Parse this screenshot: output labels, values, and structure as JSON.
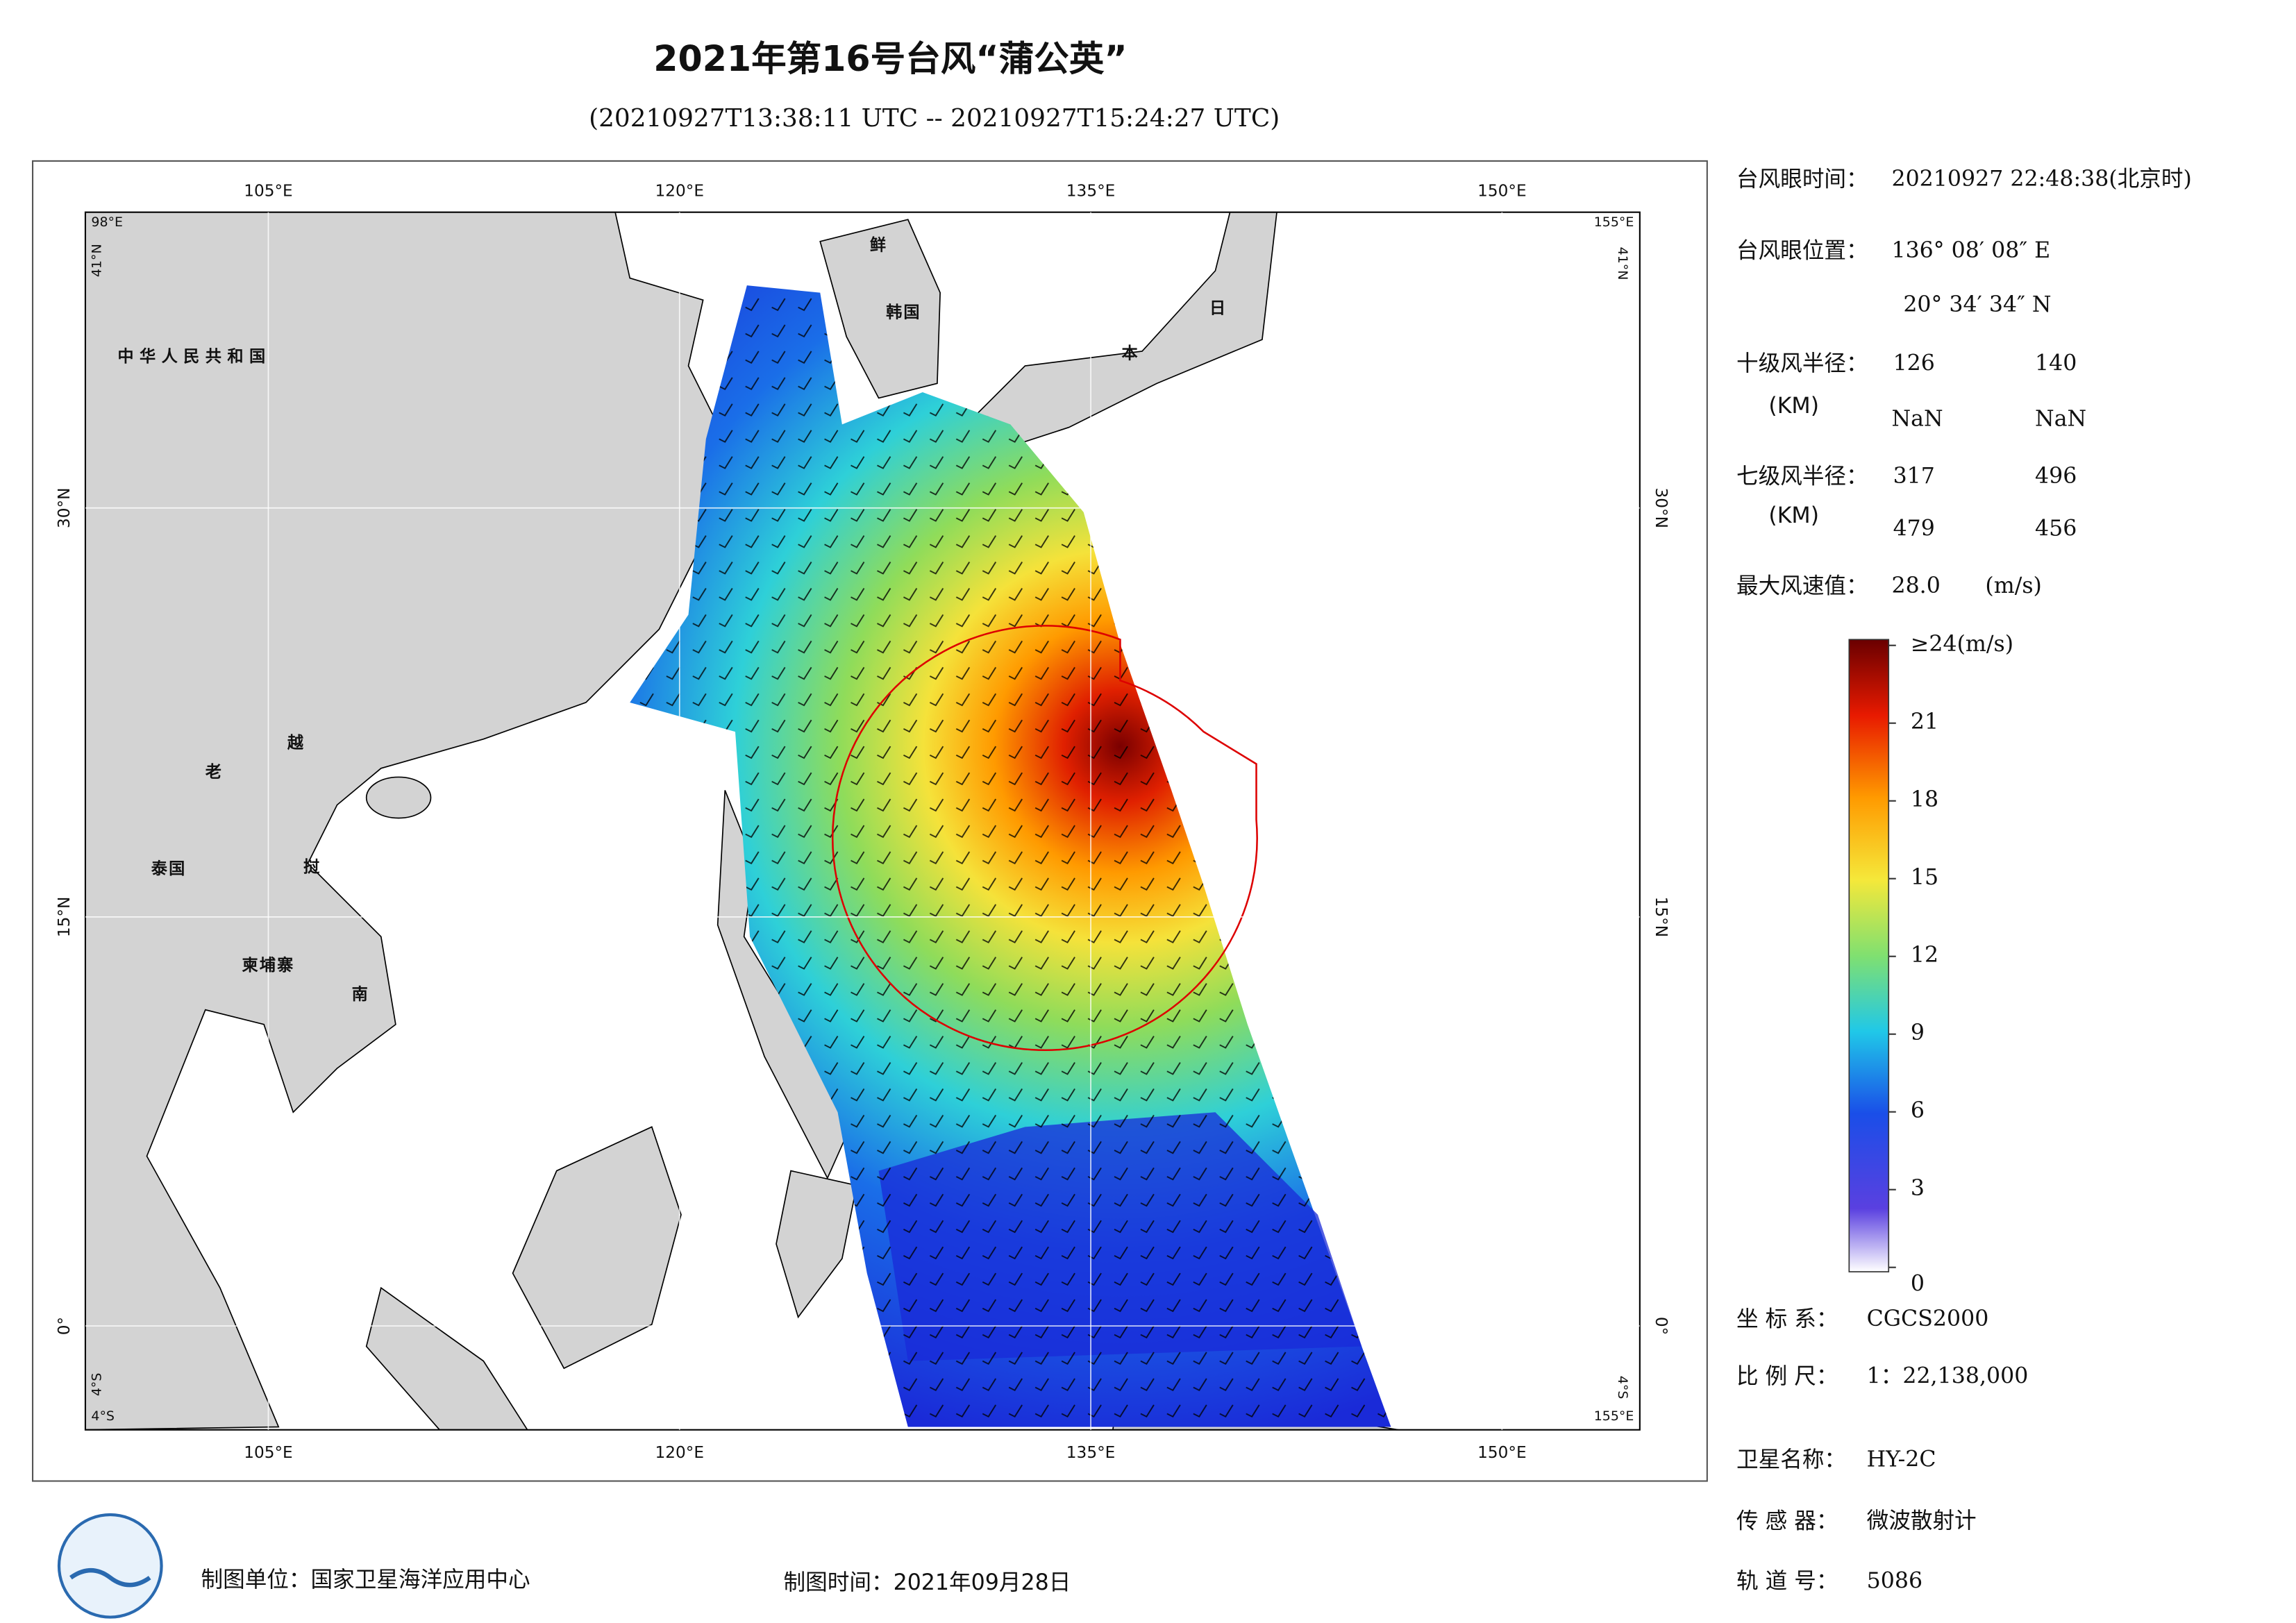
{
  "header": {
    "title": "2021年第16号台风“蒲公英”",
    "subtitle": "(20210927T13:38:11 UTC -- 20210927T15:24:27 UTC)"
  },
  "map": {
    "lon_labels": [
      {
        "value": 105,
        "label": "105°E"
      },
      {
        "value": 120,
        "label": "120°E"
      },
      {
        "value": 135,
        "label": "135°E"
      },
      {
        "value": 150,
        "label": "150°E"
      }
    ],
    "lat_labels": [
      {
        "value": 30,
        "label": "30°N"
      },
      {
        "value": 15,
        "label": "15°N"
      },
      {
        "value": 0,
        "label": "0°"
      }
    ],
    "corners": {
      "left_lon": "98°E",
      "top_lat": "41°N",
      "right_lon": "155°E",
      "bottom_lat": "4°S"
    },
    "places": [
      "中华人民共和国",
      "鲜",
      "韩国",
      "日",
      "本",
      "老",
      "越",
      "泰国",
      "挝",
      "柬埔寨",
      "南"
    ]
  },
  "info": {
    "eye_time": {
      "label": "台风眼时间：",
      "value": "20210927 22:48:38(北京时)"
    },
    "eye_position": {
      "label": "台风眼位置：",
      "lon": "136° 08′ 08″ E",
      "lat": "20° 34′ 34″ N"
    },
    "r10": {
      "label": "十级风半径：",
      "unit": "(KM)",
      "values": [
        126,
        140,
        "NaN",
        "NaN"
      ]
    },
    "r7": {
      "label": "七级风半径：",
      "unit": "(KM)",
      "values": [
        317,
        496,
        479,
        456
      ]
    },
    "max_wind": {
      "label": "最大风速值：",
      "value": "28.0",
      "unit": "(m/s)"
    }
  },
  "colorbar": {
    "lim": [
      0,
      24
    ],
    "ticks": [
      0,
      3,
      6,
      9,
      12,
      15,
      18,
      21,
      {
        "value": 24,
        "label": "≥24(m/s)"
      }
    ]
  },
  "meta": [
    {
      "label": "坐 标 系：",
      "value": "CGCS2000"
    },
    {
      "label": "比 例 尺：",
      "value": "1：22,138,000"
    },
    {
      "label": "卫星名称：",
      "value": "HY-2C"
    },
    {
      "label": "传 感 器：",
      "value": "微波散射计"
    },
    {
      "label": "轨 道 号：",
      "value": "5086"
    }
  ],
  "footer": {
    "unit": "制图单位：国家卫星海洋应用中心",
    "time": "制图时间：2021年09月28日"
  }
}
